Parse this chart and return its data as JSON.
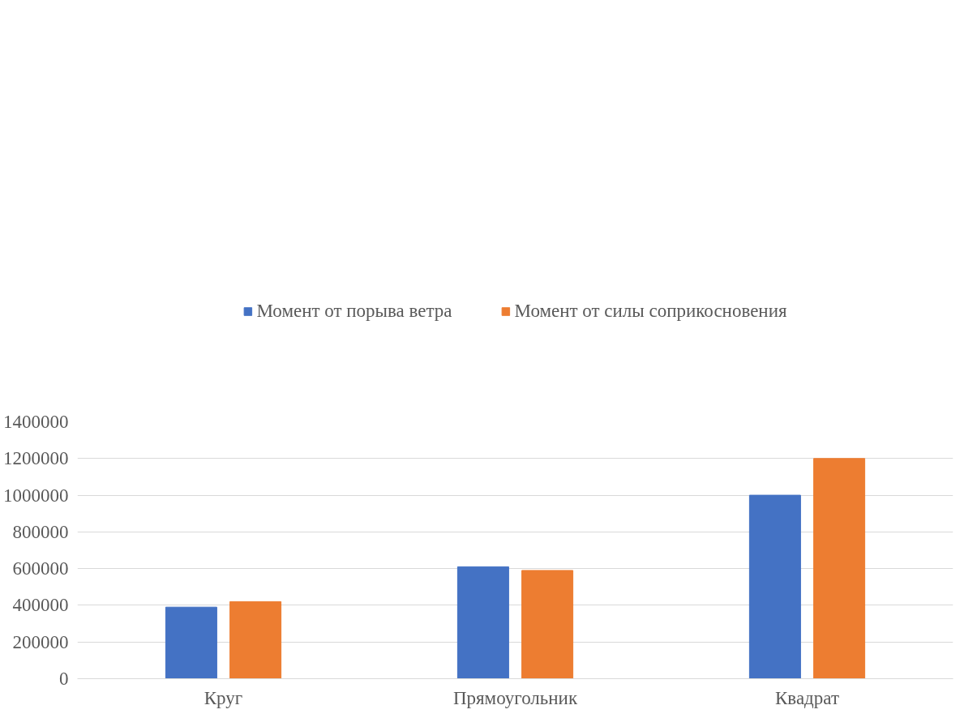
{
  "chart_data": {
    "type": "bar",
    "categories": [
      "Круг",
      "Прямоугольник",
      "Квадрат"
    ],
    "series": [
      {
        "name": "Момент от порыва ветра",
        "color": "#4472c4",
        "values": [
          390000,
          610000,
          1000000
        ]
      },
      {
        "name": "Момент от силы соприкосновения",
        "color": "#ed7d31",
        "values": [
          420000,
          590000,
          1200000
        ]
      }
    ],
    "ylim": [
      0,
      1400000
    ],
    "yticks": [
      0,
      200000,
      400000,
      600000,
      800000,
      1000000,
      1200000,
      1400000
    ],
    "grid": "y",
    "legend": "top"
  }
}
